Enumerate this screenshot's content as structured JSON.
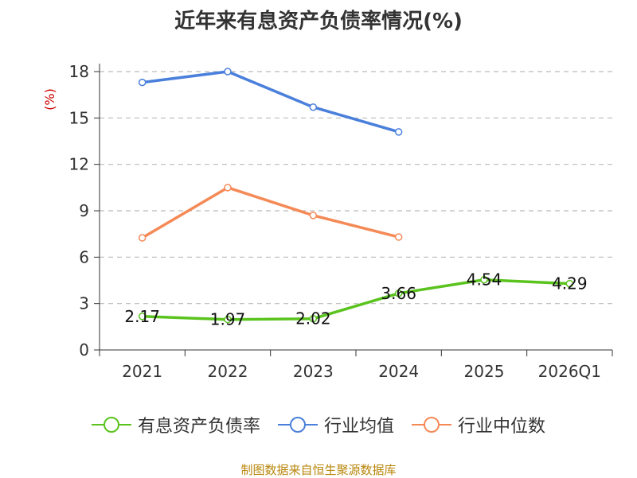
{
  "title": "近年来有息资产负债率情况(%)",
  "source": "制图数据来自恒生聚源数据库",
  "chart_data": {
    "type": "line",
    "title": "近年来有息资产负债率情况(%)",
    "ylabel": "(%)",
    "ylim": [
      0,
      18
    ],
    "yticks": [
      0,
      3,
      6,
      9,
      12,
      15,
      18
    ],
    "categories": [
      "2021",
      "2022",
      "2023",
      "2024",
      "2025",
      "2026Q1"
    ],
    "series": [
      {
        "name": "有息资产负债率",
        "color": "#5ac31e",
        "values": [
          2.17,
          1.97,
          2.02,
          3.66,
          4.54,
          4.29
        ],
        "labels": [
          "2.17",
          "1.97",
          "2.02",
          "3.66",
          "4.54",
          "4.29"
        ]
      },
      {
        "name": "行业均值",
        "color": "#4a7fdb",
        "values": [
          17.3,
          18.0,
          15.7,
          14.1,
          null,
          null
        ]
      },
      {
        "name": "行业中位数",
        "color": "#f58a57",
        "values": [
          7.25,
          10.5,
          8.7,
          7.3,
          null,
          null
        ]
      }
    ],
    "grid": true,
    "legend": "bottom"
  }
}
